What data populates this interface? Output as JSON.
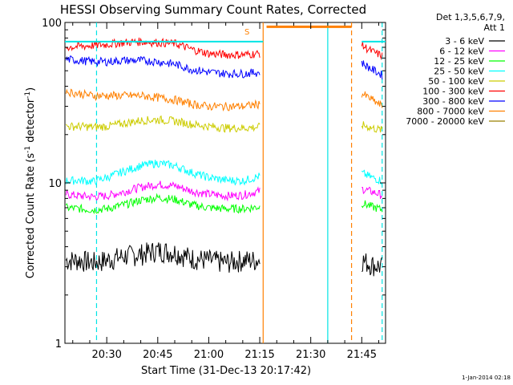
{
  "chart_data": {
    "type": "line",
    "title": "HESSI Observing Summary Count Rates, Corrected",
    "xlabel": "Start Time (31-Dec-13 20:17:42)",
    "ylabel": "Corrected Count Rate (s⁻¹ detector⁻¹)",
    "ylabel_main": "Corrected Count Rate (s",
    "ylabel_mid": " detector",
    "ylabel_end": ")",
    "ylabel_sup": "-1",
    "yscale": "log",
    "ylim": [
      1,
      100
    ],
    "xlim": [
      "20:17:42",
      "21:52:00"
    ],
    "x_ticks": [
      "20:30",
      "20:45",
      "21:00",
      "21:15",
      "21:30",
      "21:45"
    ],
    "y_ticks": [
      "1",
      "10",
      "100"
    ],
    "legend_title_1": "Det 1,3,5,6,7,9,",
    "legend_title_2": "Att 1",
    "legend_position": "top-right",
    "timestamp": "1-Jan-2014 02:18",
    "flag_label": "S",
    "series": [
      {
        "name": "3 - 6 keV",
        "color": "#000000",
        "x": [
          "20:18",
          "20:22",
          "20:26",
          "20:30",
          "20:35",
          "20:40",
          "20:45",
          "20:50",
          "20:55",
          "21:00",
          "21:05",
          "21:10",
          "21:15",
          "21:45",
          "21:48",
          "21:51"
        ],
        "values": [
          3.3,
          3.3,
          3.2,
          3.3,
          3.5,
          3.6,
          3.8,
          3.7,
          3.4,
          3.3,
          3.2,
          3.3,
          3.3,
          3.3,
          3.1,
          3.0
        ]
      },
      {
        "name": "6 - 12 keV",
        "color": "#ff00ff",
        "x": [
          "20:18",
          "20:22",
          "20:26",
          "20:30",
          "20:35",
          "20:40",
          "20:45",
          "20:50",
          "20:55",
          "21:00",
          "21:05",
          "21:10",
          "21:15",
          "21:45",
          "21:48",
          "21:51"
        ],
        "values": [
          8.5,
          8.3,
          8.2,
          8.3,
          8.8,
          9.4,
          9.8,
          9.6,
          8.9,
          8.5,
          8.3,
          8.4,
          8.9,
          9.2,
          8.8,
          8.4
        ]
      },
      {
        "name": "12 - 25 keV",
        "color": "#00ff00",
        "x": [
          "20:18",
          "20:22",
          "20:26",
          "20:30",
          "20:35",
          "20:40",
          "20:45",
          "20:50",
          "20:55",
          "21:00",
          "21:05",
          "21:10",
          "21:15",
          "21:45",
          "21:48",
          "21:51"
        ],
        "values": [
          7.0,
          6.9,
          6.8,
          6.9,
          7.3,
          7.8,
          8.1,
          7.9,
          7.3,
          7.0,
          6.9,
          6.9,
          7.1,
          7.5,
          7.1,
          6.8
        ]
      },
      {
        "name": "25 - 50 keV",
        "color": "#00ffff",
        "x": [
          "20:18",
          "20:22",
          "20:26",
          "20:30",
          "20:35",
          "20:40",
          "20:45",
          "20:50",
          "20:55",
          "21:00",
          "21:05",
          "21:10",
          "21:15",
          "21:45",
          "21:48",
          "21:51"
        ],
        "values": [
          10.3,
          10.4,
          10.2,
          10.8,
          11.8,
          12.8,
          13.3,
          12.8,
          11.6,
          10.8,
          10.4,
          10.3,
          11.0,
          11.5,
          10.8,
          10.3
        ]
      },
      {
        "name": "50 - 100 keV",
        "color": "#cccc00",
        "x": [
          "20:18",
          "20:22",
          "20:26",
          "20:30",
          "20:35",
          "20:40",
          "20:45",
          "20:50",
          "20:55",
          "21:00",
          "21:05",
          "21:10",
          "21:15",
          "21:45",
          "21:48",
          "21:51"
        ],
        "values": [
          22.5,
          22.5,
          22.3,
          22.5,
          23.5,
          24.5,
          24.8,
          24.3,
          23.2,
          22.5,
          22.0,
          22.0,
          22.3,
          23.0,
          22.0,
          21.3
        ]
      },
      {
        "name": "100 - 300 keV",
        "color": "#ff0000",
        "x": [
          "20:18",
          "20:22",
          "20:26",
          "20:30",
          "20:35",
          "20:40",
          "20:45",
          "20:50",
          "20:55",
          "21:00",
          "21:05",
          "21:10",
          "21:15",
          "21:45",
          "21:48",
          "21:51"
        ],
        "values": [
          70,
          71,
          72,
          73,
          75,
          76,
          75,
          74,
          68,
          64,
          63,
          63,
          64,
          72,
          66,
          62
        ]
      },
      {
        "name": "300 - 800 keV",
        "color": "#0000ff",
        "x": [
          "20:18",
          "20:22",
          "20:26",
          "20:30",
          "20:35",
          "20:40",
          "20:45",
          "20:50",
          "20:55",
          "21:00",
          "21:05",
          "21:10",
          "21:15",
          "21:45",
          "21:48",
          "21:51"
        ],
        "values": [
          59,
          58,
          57,
          57,
          58,
          58,
          57,
          55,
          51,
          49,
          48,
          48,
          49,
          56,
          51,
          47
        ]
      },
      {
        "name": "800 - 7000 keV",
        "color": "#ff8000",
        "x": [
          "20:18",
          "20:22",
          "20:26",
          "20:30",
          "20:35",
          "20:40",
          "20:45",
          "20:50",
          "20:55",
          "21:00",
          "21:05",
          "21:10",
          "21:15",
          "21:45",
          "21:48",
          "21:51"
        ],
        "values": [
          37,
          36,
          35,
          35,
          35,
          35,
          34,
          33,
          31,
          30,
          30,
          30,
          31,
          36,
          33,
          30
        ]
      },
      {
        "name": "7000 - 20000 keV",
        "color": "#998000",
        "x": [],
        "values": []
      }
    ],
    "att_state_lines": [
      {
        "label": "attenuator",
        "color": "#00e5e5",
        "y": 76,
        "x_ranges": [
          [
            "20:17:42",
            "21:16"
          ],
          [
            "21:45",
            "21:52"
          ]
        ]
      }
    ],
    "flag_bar": {
      "color": "#ff8000",
      "y": 94,
      "x_range": [
        "21:17",
        "21:42"
      ]
    },
    "vertical_markers": [
      {
        "x": "20:27",
        "color": "#00e5e5",
        "style": "dashed"
      },
      {
        "x": "21:16",
        "color": "#ff8000",
        "style": "solid"
      },
      {
        "x": "21:35",
        "color": "#00e5e5",
        "style": "solid"
      },
      {
        "x": "21:42",
        "color": "#ff8000",
        "style": "dashed"
      },
      {
        "x": "21:51",
        "color": "#00e5e5",
        "style": "dashed"
      }
    ]
  }
}
